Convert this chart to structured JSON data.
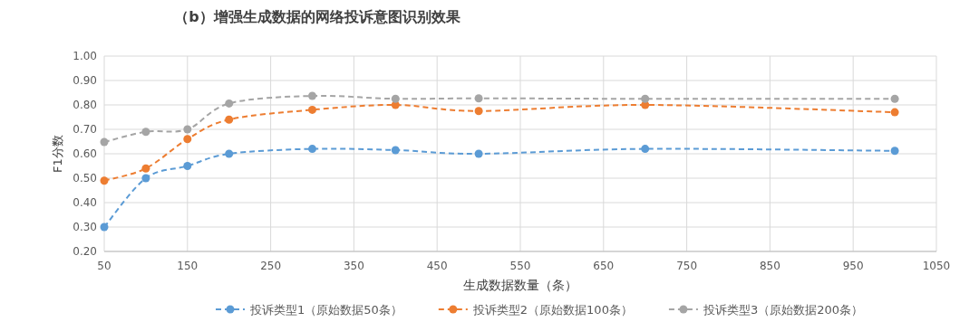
{
  "chart_data": {
    "type": "line",
    "title": "（b）增强生成数据的网络投诉意图识别效果",
    "xlabel": "生成数据数量（条）",
    "ylabel": "F1分数",
    "x": [
      50,
      100,
      150,
      200,
      300,
      400,
      500,
      700,
      1000
    ],
    "series": [
      {
        "name": "投诉类型1（原始数据50条）",
        "color": "#5b9bd5",
        "values": [
          0.3,
          0.5,
          0.55,
          0.6,
          0.62,
          0.615,
          0.6,
          0.62,
          0.612
        ]
      },
      {
        "name": "投诉类型2（原始数据100条）",
        "color": "#ed7d31",
        "values": [
          0.49,
          0.54,
          0.66,
          0.74,
          0.78,
          0.8,
          0.775,
          0.8,
          0.77
        ]
      },
      {
        "name": "投诉类型3（原始数据200条）",
        "color": "#a5a5a5",
        "values": [
          0.648,
          0.69,
          0.7,
          0.806,
          0.837,
          0.825,
          0.827,
          0.825,
          0.825
        ]
      }
    ],
    "xlim": [
      50,
      1050
    ],
    "xticks": [
      50,
      150,
      250,
      350,
      450,
      550,
      650,
      750,
      850,
      950,
      1050
    ],
    "ylim": [
      0.2,
      1.0
    ],
    "yticks": [
      {
        "value": 0.2,
        "label": "0.20"
      },
      {
        "value": 0.3,
        "label": "0.30"
      },
      {
        "value": 0.4,
        "label": "0.40"
      },
      {
        "value": 0.5,
        "label": "0.50"
      },
      {
        "value": 0.6,
        "label": "0.60"
      },
      {
        "value": 0.7,
        "label": "0.70"
      },
      {
        "value": 0.8,
        "label": "0.80"
      },
      {
        "value": 0.9,
        "label": "0.90"
      },
      {
        "value": 1.0,
        "label": "1.00"
      }
    ],
    "grid": true,
    "legend": "bottom",
    "marker": "circle",
    "line_style": "dashed"
  }
}
